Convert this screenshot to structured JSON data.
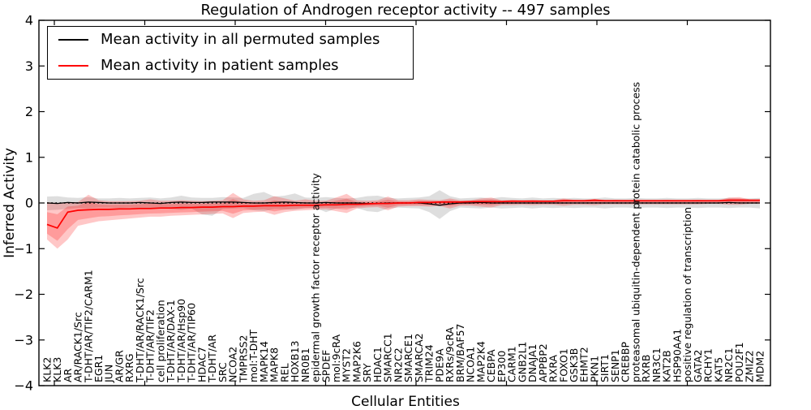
{
  "colors": {
    "permuted_line": "#000000",
    "patient_line": "#ff0000",
    "permuted_band": "rgba(0,0,0,0.13)",
    "patient_band": "rgba(255,0,0,0.22)",
    "frame": "#000000",
    "background": "#ffffff"
  },
  "chart_data": {
    "type": "line",
    "title": "Regulation of Androgen receptor activity -- 497 samples",
    "xlabel": "Cellular Entities",
    "ylabel": "Inferred Activity",
    "ylim": [
      -4,
      4
    ],
    "yticks": [
      4,
      3,
      2,
      1,
      0,
      -1,
      -2,
      -3,
      -4
    ],
    "grid": false,
    "zero_line": true,
    "legend_position": "upper-left",
    "categories": [
      "KLK2",
      "KLK3",
      "AR",
      "AR/RACK1/Src",
      "T-DHT/AR/TIF2/CARM1",
      "EGR1",
      "JUN",
      "AR/GR",
      "RXRG",
      "T-DHT/AR/RACK1/Src",
      "T-DHT/AR/TIF2",
      "cell proliferation",
      "T-DHT/AR/DAX-1",
      "T-DHT/AR/Hsp90",
      "T-DHT/AR/TIP60",
      "HDAC7",
      "T-DHT/AR",
      "SRC",
      "NCOA2",
      "TMPRSS2",
      "mol:T-DHT",
      "MAPK14",
      "MAPK8",
      "REL",
      "HOXB13",
      "NR0B1",
      "epidermal growth factor receptor activity",
      "SPDEF",
      "mol:9cRA",
      "MYST2",
      "MAP2K6",
      "SRY",
      "HDAC1",
      "SMARCC1",
      "NR2C2",
      "SMARCE1",
      "SMARCA2",
      "TRIM24",
      "PDE9A",
      "RXRs/9cRA",
      "BRM/BAF57",
      "NCOA1",
      "MAP2K4",
      "CEBPA",
      "EP300",
      "CARM1",
      "GNB2L1",
      "DNAJA1",
      "APPBP2",
      "RXRA",
      "FOXO1",
      "GSK3B",
      "EHMT2",
      "PKN1",
      "SIRT1",
      "SENP1",
      "CREBBP",
      "proteasomal ubiquitin-dependent protein catabolic process",
      "RXRB",
      "NR3C1",
      "KAT2B",
      "HSP90AA1",
      "positive regulation of transcription",
      "GATA2",
      "RCHY1",
      "KAT5",
      "NR2C1",
      "POU2F1",
      "ZMIZ2",
      "MDM2"
    ],
    "series": [
      {
        "name": "Mean activity in all permuted samples",
        "color": "#000000",
        "values": [
          0,
          -0.01,
          0.01,
          0,
          0.02,
          0.01,
          0,
          0,
          0,
          0.01,
          0,
          -0.01,
          0.01,
          0.02,
          0.01,
          0.01,
          0.02,
          0.02,
          0.02,
          0.01,
          0,
          0,
          0.01,
          0.02,
          0.01,
          0,
          0,
          0.01,
          0,
          0,
          0,
          -0.01,
          -0.01,
          0,
          0,
          0,
          0,
          -0.02,
          -0.05,
          -0.02,
          0,
          0,
          0.01,
          0,
          0,
          0,
          0,
          0,
          0,
          0,
          0,
          0,
          0,
          0,
          0,
          0,
          0,
          0,
          0,
          0,
          0,
          0,
          0,
          0,
          0,
          0,
          0.01,
          0,
          0,
          0
        ],
        "band_hi": [
          0.14,
          0.15,
          0.12,
          0.11,
          0.13,
          0.1,
          0.1,
          0.11,
          0.1,
          0.11,
          0.12,
          0.1,
          0.12,
          0.16,
          0.12,
          0.11,
          0.11,
          0.13,
          0.12,
          0.11,
          0.2,
          0.24,
          0.14,
          0.16,
          0.21,
          0.12,
          0.11,
          0.13,
          0.11,
          0.1,
          0.11,
          0.15,
          0.16,
          0.11,
          0.1,
          0.11,
          0.12,
          0.15,
          0.28,
          0.15,
          0.1,
          0.11,
          0.12,
          0.1,
          0.13,
          0.11,
          0.1,
          0.12,
          0.1,
          0.11,
          0.1,
          0.11,
          0.1,
          0.1,
          0.12,
          0.1,
          0.1,
          0.11,
          0.1,
          0.1,
          0.11,
          0.1,
          0.1,
          0.11,
          0.1,
          0.1,
          0.11,
          0.1,
          0.1,
          0.11
        ],
        "band_lo": [
          -0.16,
          -0.15,
          -0.13,
          -0.11,
          -0.12,
          -0.1,
          -0.1,
          -0.11,
          -0.1,
          -0.11,
          -0.12,
          -0.11,
          -0.13,
          -0.15,
          -0.12,
          -0.25,
          -0.28,
          -0.13,
          -0.12,
          -0.11,
          -0.16,
          -0.18,
          -0.13,
          -0.14,
          -0.15,
          -0.11,
          -0.11,
          -0.2,
          -0.12,
          -0.1,
          -0.11,
          -0.18,
          -0.2,
          -0.12,
          -0.1,
          -0.11,
          -0.12,
          -0.2,
          -0.35,
          -0.18,
          -0.1,
          -0.11,
          -0.12,
          -0.1,
          -0.12,
          -0.11,
          -0.1,
          -0.12,
          -0.1,
          -0.11,
          -0.1,
          -0.11,
          -0.1,
          -0.1,
          -0.12,
          -0.1,
          -0.1,
          -0.11,
          -0.1,
          -0.1,
          -0.11,
          -0.1,
          -0.1,
          -0.11,
          -0.1,
          -0.1,
          -0.11,
          -0.1,
          -0.1,
          -0.12
        ]
      },
      {
        "name": "Mean activity in patient samples",
        "color": "#ff0000",
        "values": [
          -0.47,
          -0.55,
          -0.2,
          -0.16,
          -0.15,
          -0.14,
          -0.14,
          -0.13,
          -0.13,
          -0.12,
          -0.12,
          -0.11,
          -0.11,
          -0.1,
          -0.1,
          -0.09,
          -0.09,
          -0.08,
          -0.08,
          -0.07,
          -0.07,
          -0.06,
          -0.06,
          -0.06,
          -0.05,
          -0.05,
          -0.05,
          -0.04,
          -0.04,
          -0.03,
          -0.03,
          -0.02,
          -0.01,
          -0.01,
          0.0,
          0.0,
          0.01,
          0.01,
          0.02,
          0.02,
          0.02,
          0.03,
          0.03,
          0.03,
          0.03,
          0.04,
          0.04,
          0.04,
          0.04,
          0.04,
          0.05,
          0.05,
          0.05,
          0.06,
          0.05,
          0.05,
          0.05,
          0.05,
          0.05,
          0.05,
          0.05,
          0.05,
          0.05,
          0.05,
          0.05,
          0.05,
          0.06,
          0.06,
          0.06,
          0.06
        ],
        "band_hi": [
          0.02,
          0.0,
          0.02,
          0.02,
          0.18,
          0.06,
          0.04,
          0.04,
          0.04,
          0.05,
          0.08,
          0.05,
          0.05,
          0.06,
          0.05,
          0.04,
          0.05,
          0.06,
          0.22,
          0.08,
          0.05,
          0.06,
          0.15,
          0.1,
          0.05,
          0.08,
          0.05,
          0.05,
          0.12,
          0.2,
          0.06,
          0.05,
          0.06,
          0.14,
          0.06,
          0.06,
          0.08,
          0.07,
          0.06,
          0.1,
          0.06,
          0.06,
          0.1,
          0.12,
          0.06,
          0.07,
          0.06,
          0.07,
          0.06,
          0.06,
          0.1,
          0.07,
          0.06,
          0.09,
          0.06,
          0.07,
          0.06,
          0.07,
          0.06,
          0.06,
          0.07,
          0.06,
          0.06,
          0.07,
          0.06,
          0.06,
          0.12,
          0.13,
          0.08,
          0.08
        ],
        "band_lo": [
          -0.8,
          -1.0,
          -0.8,
          -0.5,
          -0.45,
          -0.4,
          -0.38,
          -0.36,
          -0.34,
          -0.32,
          -0.3,
          -0.3,
          -0.28,
          -0.27,
          -0.26,
          -0.25,
          -0.24,
          -0.23,
          -0.33,
          -0.22,
          -0.2,
          -0.19,
          -0.26,
          -0.2,
          -0.17,
          -0.16,
          -0.15,
          -0.14,
          -0.18,
          -0.22,
          -0.12,
          -0.1,
          -0.09,
          -0.16,
          -0.08,
          -0.07,
          -0.07,
          -0.08,
          -0.07,
          -0.12,
          -0.06,
          -0.06,
          -0.08,
          -0.1,
          -0.05,
          -0.05,
          -0.04,
          -0.05,
          -0.04,
          -0.04,
          -0.06,
          -0.04,
          -0.04,
          -0.05,
          -0.03,
          -0.03,
          -0.03,
          -0.03,
          -0.03,
          -0.03,
          -0.03,
          -0.03,
          -0.03,
          -0.03,
          -0.02,
          -0.02,
          -0.04,
          -0.04,
          -0.02,
          -0.02
        ]
      }
    ]
  }
}
